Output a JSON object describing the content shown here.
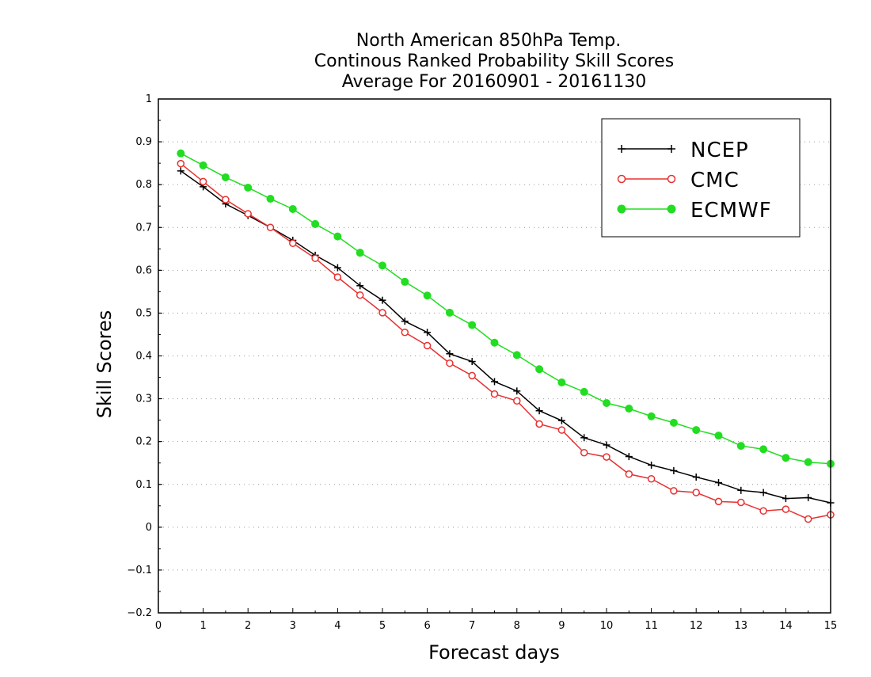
{
  "chart_data": {
    "type": "line",
    "title": [
      "North American 850hPa Temp.",
      "Continous Ranked Probability Skill Scores",
      "Average For 20160901 - 20161130"
    ],
    "xlabel": "Forecast days",
    "ylabel": "Skill Scores",
    "xlim": [
      0,
      15
    ],
    "ylim": [
      -0.2,
      1
    ],
    "xticks": [
      "0",
      "1",
      "2",
      "3",
      "4",
      "5",
      "6",
      "7",
      "8",
      "9",
      "10",
      "11",
      "12",
      "13",
      "14",
      "15"
    ],
    "yticks": [
      "−0.2",
      "−0.1",
      "0",
      "0.1",
      "0.2",
      "0.3",
      "0.4",
      "0.5",
      "0.6",
      "0.7",
      "0.8",
      "0.9",
      "1"
    ],
    "grid": "horizontal dotted",
    "legend_position": "top-right",
    "x": [
      0.5,
      1,
      1.5,
      2,
      2.5,
      3,
      3.5,
      4,
      4.5,
      5,
      5.5,
      6,
      6.5,
      7,
      7.5,
      8,
      8.5,
      9,
      9.5,
      10,
      10.5,
      11,
      11.5,
      12,
      12.5,
      13,
      13.5,
      14,
      14.5,
      15
    ],
    "series": [
      {
        "name": "NCEP",
        "color": "#000000",
        "marker": "plus",
        "values": [
          0.832,
          0.795,
          0.755,
          0.728,
          0.7,
          0.67,
          0.635,
          0.606,
          0.564,
          0.53,
          0.481,
          0.455,
          0.405,
          0.387,
          0.34,
          0.318,
          0.272,
          0.249,
          0.209,
          0.192,
          0.165,
          0.145,
          0.132,
          0.117,
          0.104,
          0.086,
          0.081,
          0.067,
          0.069,
          0.057
        ]
      },
      {
        "name": "CMC",
        "color": "#e83030",
        "marker": "open-circle",
        "values": [
          0.849,
          0.807,
          0.765,
          0.732,
          0.7,
          0.663,
          0.628,
          0.584,
          0.542,
          0.501,
          0.455,
          0.424,
          0.383,
          0.354,
          0.311,
          0.295,
          0.241,
          0.227,
          0.174,
          0.164,
          0.124,
          0.113,
          0.085,
          0.081,
          0.06,
          0.058,
          0.038,
          0.042,
          0.019,
          0.029
        ]
      },
      {
        "name": "ECMWF",
        "color": "#22dd22",
        "marker": "filled-circle",
        "values": [
          0.873,
          0.845,
          0.817,
          0.793,
          0.767,
          0.743,
          0.708,
          0.679,
          0.641,
          0.611,
          0.573,
          0.541,
          0.501,
          0.472,
          0.431,
          0.402,
          0.369,
          0.338,
          0.316,
          0.29,
          0.277,
          0.259,
          0.244,
          0.227,
          0.214,
          0.19,
          0.182,
          0.162,
          0.152,
          0.148
        ]
      }
    ]
  }
}
